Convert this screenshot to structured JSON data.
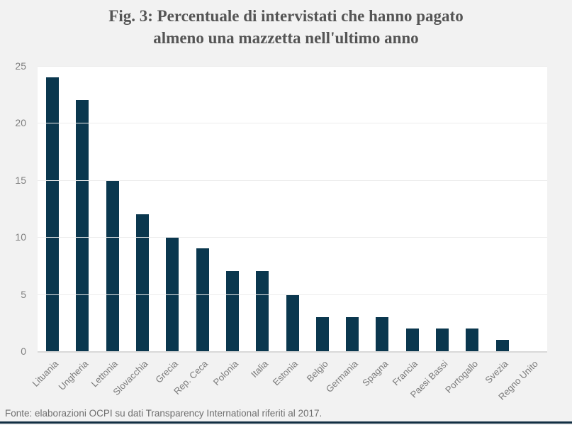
{
  "header": {
    "title_lines": [
      "Fig. 3: Percentuale di intervistati che hanno pagato",
      "almeno una mazzetta nell'ultimo anno"
    ]
  },
  "footer": {
    "source": "Fonte: elaborazioni OCPI su dati Transparency International riferiti al 2017."
  },
  "colors": {
    "bar": "#0a374e",
    "figure_background": "#f2f2f2",
    "plot_background": "#ffffff",
    "gridline": "#ececec",
    "axis_line": "#d9d9d9",
    "title_text": "#555555",
    "tick_text": "#7a7a7a",
    "bottom_rule": "#122f43"
  },
  "chart_data": {
    "type": "bar",
    "title": "Fig. 3: Percentuale di intervistati che hanno pagato almeno una mazzetta nell'ultimo anno",
    "categories": [
      "Lituania",
      "Ungheria",
      "Lettonia",
      "Slovacchia",
      "Grecia",
      "Rep. Ceca",
      "Polonia",
      "Italia",
      "Estonia",
      "Belgio",
      "Germania",
      "Spagna",
      "Francia",
      "Paesi Bassi",
      "Portogallo",
      "Svezia",
      "Regno Unito"
    ],
    "values": [
      24,
      22,
      15,
      12,
      10,
      9,
      7,
      7,
      5,
      3,
      3,
      3,
      2,
      2,
      2,
      1,
      0
    ],
    "xlabel": "",
    "ylabel": "",
    "ylim": [
      0,
      25
    ],
    "yticks": [
      0,
      5,
      10,
      15,
      20,
      25
    ],
    "grid": true,
    "legend": false,
    "source_note": "Fonte: elaborazioni OCPI su dati Transparency International riferiti al 2017."
  }
}
